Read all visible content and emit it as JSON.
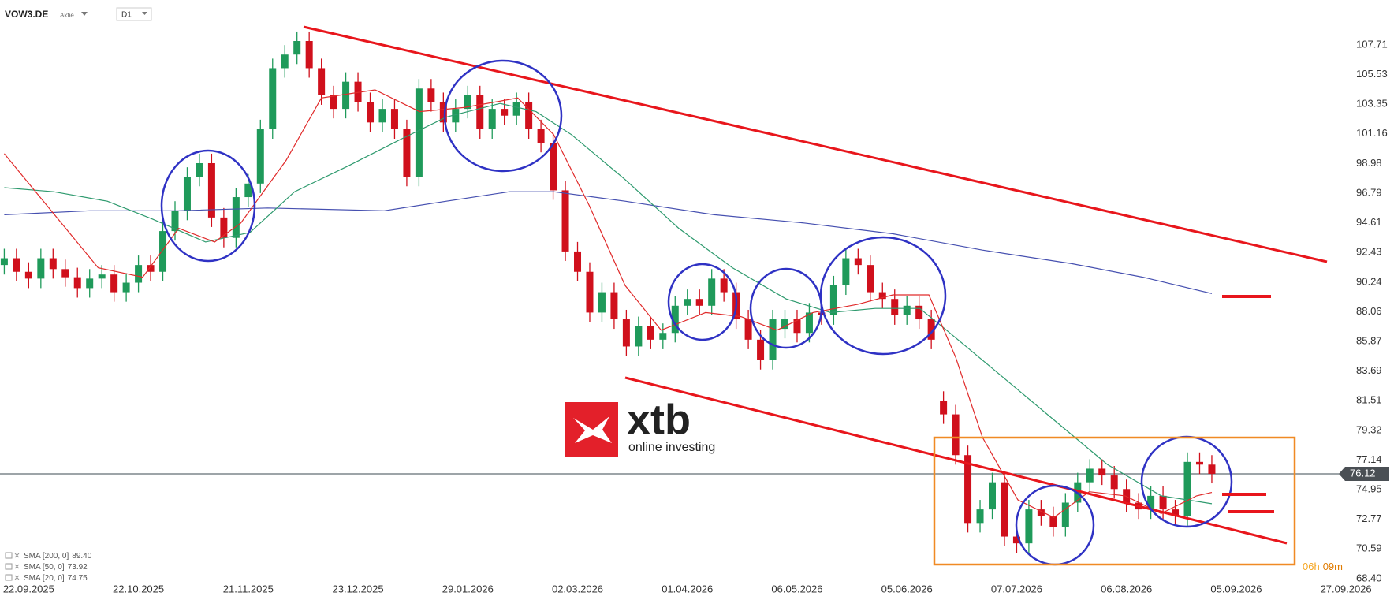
{
  "chart_data": {
    "type": "candlestick",
    "symbol": "VOW3.DE",
    "instrument_type": "Aktie",
    "timeframe": "D1",
    "up_color": "#1f9a5a",
    "down_color": "#d0101c",
    "x": [
      -4,
      -2,
      0,
      2,
      4,
      6,
      8,
      10,
      12,
      14,
      16,
      18,
      20,
      22,
      24,
      26,
      28,
      30,
      32,
      34,
      36,
      38,
      40,
      42,
      44,
      46,
      48,
      50,
      52,
      54,
      56,
      58,
      60,
      62,
      64,
      66,
      68,
      70,
      72,
      74,
      76,
      78,
      80,
      82,
      84,
      86,
      88,
      90,
      92,
      94,
      96,
      98,
      100,
      102,
      104,
      106,
      108,
      110,
      112,
      114,
      116,
      118,
      120,
      122,
      124,
      126,
      128,
      130,
      132,
      134,
      136,
      138,
      140,
      142,
      144,
      146,
      148,
      150,
      152,
      154,
      156,
      158,
      160,
      162,
      164,
      166,
      168,
      170,
      172,
      174,
      176,
      178,
      180,
      182,
      184,
      186,
      188,
      190,
      192,
      194
    ],
    "open": [
      91.5,
      92,
      91,
      90.5,
      92,
      91.2,
      90.6,
      89.8,
      90.5,
      90.8,
      89.5,
      90.2,
      91.5,
      91,
      94,
      95.5,
      98,
      99,
      95,
      93.5,
      96.5,
      97.5,
      101.5,
      106,
      107,
      108,
      106,
      104,
      103,
      105,
      103.5,
      102,
      103,
      101.5,
      98,
      104.5,
      103.5,
      102,
      103,
      104,
      101.5,
      103,
      102.5,
      103.5,
      101.5,
      100.5,
      97,
      92.5,
      91,
      88,
      89.5,
      87.5,
      85.5,
      87,
      86,
      86.5,
      88.5,
      89,
      88.5,
      90.5,
      89.5,
      87.5,
      86,
      84.5,
      86.8,
      87.5,
      86.5,
      88,
      87.8,
      90,
      92,
      91.5,
      89.5,
      89,
      87.8,
      88.5,
      87.5,
      81.5,
      80.5,
      77.5,
      72.5,
      73.5,
      75.5,
      71.5,
      71,
      73.5,
      73,
      72.2,
      74,
      75.5,
      76.5,
      76,
      75,
      74,
      73.5,
      74.5,
      73.5,
      73,
      77,
      76.8
    ],
    "high": [
      92.7,
      92.7,
      91.7,
      92.7,
      92.7,
      91.9,
      91.3,
      91.2,
      91.5,
      91.5,
      90.9,
      92.2,
      92.2,
      94.7,
      96.2,
      98.7,
      99.7,
      99.7,
      95.7,
      97.2,
      98.2,
      102.2,
      106.7,
      107.7,
      108.7,
      108.7,
      106.7,
      104.7,
      105.7,
      105.7,
      104.2,
      103.7,
      103.7,
      102.2,
      105.2,
      105.2,
      104.2,
      103.7,
      104.7,
      104.7,
      103.7,
      103.7,
      104.2,
      104.2,
      102.2,
      101.2,
      97.7,
      93.2,
      91.7,
      90.2,
      90.2,
      88.2,
      87.7,
      87.7,
      87.2,
      89.2,
      89.7,
      89.7,
      91.2,
      91.2,
      90.2,
      88.2,
      86.7,
      88.2,
      88.2,
      88.2,
      88.7,
      88.7,
      90.7,
      92.7,
      92.7,
      92.2,
      90.2,
      89.7,
      89.2,
      89.2,
      88.2,
      82.2,
      81.2,
      78.2,
      74.2,
      76.2,
      76.2,
      72.2,
      74.2,
      74.2,
      73.7,
      74.7,
      76.2,
      77.2,
      77.2,
      76.7,
      75.7,
      74.7,
      75.2,
      75.2,
      74.2,
      77.7,
      77.7,
      77.5
    ],
    "low": [
      90.8,
      90.3,
      89.8,
      89.8,
      90.5,
      89.9,
      89.1,
      89.1,
      89.8,
      88.8,
      88.8,
      89.5,
      90.3,
      90.3,
      93.3,
      94.8,
      97.3,
      94.3,
      92.8,
      92.8,
      95.8,
      96.8,
      100.8,
      105.3,
      106.3,
      105.3,
      103.3,
      102.3,
      102.3,
      102.8,
      101.3,
      101.3,
      100.8,
      97.3,
      97.3,
      102.8,
      101.3,
      101.3,
      102.3,
      100.8,
      100.8,
      101.8,
      101.8,
      100.8,
      99.8,
      96.3,
      91.8,
      90.3,
      87.3,
      87.3,
      86.8,
      84.8,
      84.8,
      85.3,
      85.3,
      85.8,
      87.8,
      87.8,
      87.8,
      88.8,
      86.8,
      85.3,
      83.8,
      83.8,
      86.1,
      85.8,
      85.8,
      87.1,
      87.1,
      89.3,
      90.8,
      88.8,
      88.3,
      87.1,
      87.1,
      86.8,
      85.3,
      79.8,
      76.8,
      71.8,
      71.8,
      72.8,
      70.8,
      70.3,
      70.3,
      72.3,
      71.5,
      71.5,
      73.3,
      74.8,
      75.3,
      74.3,
      73.3,
      72.8,
      72.8,
      72.8,
      72.3,
      72.3,
      76.1,
      75.42
    ],
    "close": [
      92,
      91,
      90.5,
      92,
      91.2,
      90.6,
      89.8,
      90.5,
      90.8,
      89.5,
      90.2,
      91.5,
      91,
      94,
      95.5,
      98,
      99,
      95,
      93.5,
      96.5,
      97.5,
      101.5,
      106,
      107,
      108,
      106,
      104,
      103,
      105,
      103.5,
      102,
      103,
      101.5,
      98,
      104.5,
      103.5,
      102,
      103,
      104,
      101.5,
      103,
      102.5,
      103.5,
      101.5,
      100.5,
      97,
      92.5,
      91,
      88,
      89.5,
      87.5,
      85.5,
      87,
      86,
      86.5,
      88.5,
      89,
      88.5,
      90.5,
      89.5,
      87.5,
      86,
      84.5,
      87.5,
      87.5,
      86.5,
      88,
      87.8,
      90,
      92,
      91.5,
      89.5,
      89,
      87.8,
      88.5,
      87.5,
      86,
      80.5,
      77.5,
      72.5,
      73.5,
      75.5,
      71.5,
      71,
      73.5,
      73,
      72.2,
      74,
      75.5,
      76.5,
      76,
      75,
      74,
      73.5,
      74.5,
      73.5,
      73,
      77,
      76.8,
      76.12
    ],
    "series": [
      {
        "name": "SMA [200, 0]",
        "last_label": "89.40",
        "color": "#4650b0",
        "x": [
          -4,
          10,
          24.6,
          39.2,
          58.3,
          68.5,
          78.8,
          86.1,
          97.8,
          112.4,
          127.1,
          141.7,
          156.4,
          171,
          182.7,
          194
        ],
        "values": [
          95.2,
          95.5,
          95.5,
          95.7,
          95.5,
          96.2,
          96.9,
          96.9,
          96.2,
          95.2,
          94.6,
          93.8,
          92.6,
          91.6,
          90.6,
          89.4
        ]
      },
      {
        "name": "SMA [50, 0]",
        "last_label": "73.92",
        "color": "#2e9a6e",
        "x": [
          -4,
          4.1,
          12.9,
          20.2,
          29,
          36.3,
          43.6,
          52.4,
          61.2,
          68.5,
          77.3,
          83.2,
          89,
          97.8,
          106.6,
          115.4,
          124.2,
          131.5,
          138.8,
          146.1,
          150.5,
          159.3,
          168.1,
          176.9,
          185.7,
          194
        ],
        "values": [
          97.2,
          96.9,
          96.2,
          94.9,
          93.2,
          93.9,
          96.9,
          98.8,
          100.8,
          102.4,
          103.4,
          102.8,
          101.1,
          97.8,
          94.2,
          91.3,
          89,
          88,
          88.3,
          88.3,
          86.7,
          83.4,
          80.1,
          76.8,
          74.5,
          73.92
        ]
      },
      {
        "name": "SMA [20, 0]",
        "last_label": "74.75",
        "color": "#e02a2a",
        "x": [
          -4,
          11.4,
          18.7,
          24.6,
          30.5,
          34.8,
          42.2,
          48,
          56.8,
          64.1,
          71.4,
          80.2,
          86.1,
          91.9,
          97.8,
          103.7,
          111,
          116.8,
          122.7,
          128.6,
          135.9,
          141.7,
          147.6,
          152,
          156.4,
          162.2,
          168.1,
          173.9,
          179.8,
          185.7,
          191.5,
          194
        ],
        "values": [
          99.7,
          91.3,
          90.6,
          94.2,
          93.2,
          94.6,
          99.2,
          103.8,
          104.4,
          102.8,
          103.1,
          103.8,
          101.1,
          95.9,
          90,
          86.7,
          88,
          87.7,
          86.7,
          88,
          88.6,
          89.3,
          89.3,
          84.7,
          78.8,
          74.2,
          72.9,
          74.8,
          74.5,
          73.2,
          74.5,
          74.75
        ]
      }
    ],
    "current_price": 76.12,
    "timer": [
      "06h",
      "09m"
    ],
    "xlim": [
      -4.7,
      216.5
    ],
    "ylim": [
      68.28,
      111.02
    ],
    "yticks": [
      {
        "value": 68.4,
        "label": "68.40"
      },
      70.59,
      72.77,
      74.95,
      77.14,
      79.32,
      81.51,
      83.69,
      85.87,
      88.06,
      90.24,
      92.43,
      94.61,
      96.79,
      98.98,
      101.16,
      103.35,
      105.53,
      107.71
    ],
    "xticks": [
      {
        "value": 0,
        "label": "22.09.2025"
      },
      {
        "value": 18,
        "label": "22.10.2025"
      },
      {
        "value": 36,
        "label": "21.11.2025"
      },
      {
        "value": 54,
        "label": "23.12.2025"
      },
      {
        "value": 72,
        "label": "29.01.2026"
      },
      {
        "value": 90,
        "label": "02.03.2026"
      },
      {
        "value": 108,
        "label": "01.04.2026"
      },
      {
        "value": 126,
        "label": "06.05.2026"
      },
      {
        "value": 144,
        "label": "05.06.2026"
      },
      {
        "value": 162,
        "label": "07.07.2026"
      },
      {
        "value": 180,
        "label": "06.08.2026"
      },
      {
        "value": 198,
        "label": "05.09.2026"
      },
      {
        "value": 216,
        "label": "27.09.2026"
      }
    ],
    "grid": false
  },
  "logo": {
    "brand": "xtb",
    "tagline": "online investing"
  }
}
